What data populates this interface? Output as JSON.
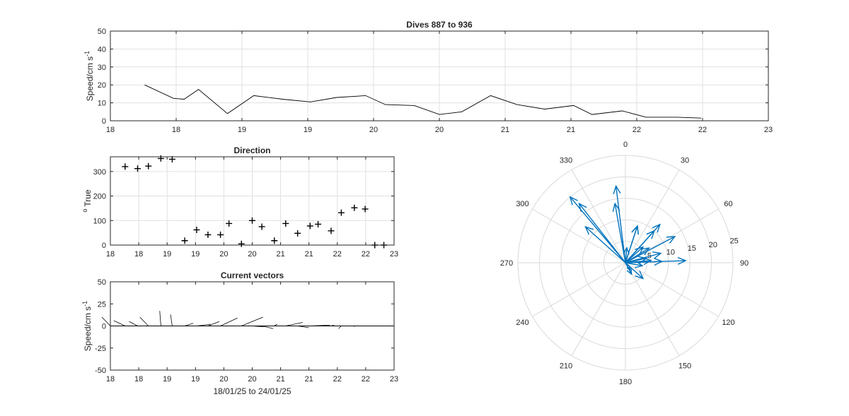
{
  "colors": {
    "axis": "#262626",
    "grid": "#e0e0e0",
    "trace": "#000000",
    "polar_grid": "#d9d9d9",
    "vector": "#0072bd"
  },
  "chart_data": [
    {
      "id": "speed",
      "type": "line",
      "title": "Dives 887 to 936",
      "xlabel": "",
      "ylabel": "Speed/cm s",
      "ylabel_sup": "-1",
      "xlim": [
        18.0,
        23.0
      ],
      "ylim": [
        0,
        50
      ],
      "xticks": [
        18.0,
        18.5,
        19.0,
        19.5,
        20.0,
        20.5,
        21.0,
        21.5,
        22.0,
        22.5,
        23.0
      ],
      "xtick_labels": [
        "18",
        "18",
        "19",
        "19",
        "20",
        "20",
        "21",
        "21",
        "22",
        "22",
        "23"
      ],
      "yticks": [
        0,
        10,
        20,
        30,
        40,
        50
      ],
      "ytick_labels": [
        "0",
        "10",
        "20",
        "30",
        "40",
        "50"
      ],
      "grid": true,
      "series": [
        {
          "x": [
            18.26,
            18.48,
            18.56,
            18.67,
            18.89,
            19.09,
            19.31,
            19.52,
            19.72,
            19.94,
            20.09,
            20.31,
            20.5,
            20.67,
            20.89,
            21.09,
            21.3,
            21.52,
            21.66,
            21.89,
            22.07,
            22.3,
            22.49
          ],
          "y": [
            20,
            12.5,
            12,
            17.5,
            4,
            14,
            12,
            10.5,
            13,
            14,
            9,
            8.5,
            3.5,
            5,
            14,
            9,
            6.5,
            8.5,
            3.5,
            5.5,
            2,
            2,
            1.5
          ]
        }
      ]
    },
    {
      "id": "direction",
      "type": "scatter",
      "title": "Direction",
      "xlabel": "",
      "ylabel": "True",
      "ylabel_pre": "o",
      "xlim": [
        18.0,
        23.0
      ],
      "ylim": [
        0,
        360
      ],
      "xticks": [
        18.0,
        18.5,
        19.0,
        19.5,
        20.0,
        20.5,
        21.0,
        21.5,
        22.0,
        22.5,
        23.0
      ],
      "xtick_labels": [
        "18",
        "18",
        "19",
        "19",
        "20",
        "20",
        "21",
        "21",
        "22",
        "22",
        "23"
      ],
      "yticks": [
        0,
        100,
        200,
        300
      ],
      "ytick_labels": [
        "0",
        "100",
        "200",
        "300"
      ],
      "grid": true,
      "marker": "+",
      "series": [
        {
          "x": [
            18.26,
            18.48,
            18.67,
            18.89,
            19.09,
            19.31,
            19.52,
            19.72,
            19.94,
            20.09,
            20.31,
            20.5,
            20.67,
            20.89,
            21.09,
            21.3,
            21.52,
            21.66,
            21.89,
            22.07,
            22.3,
            22.49,
            22.66,
            22.82
          ],
          "y": [
            320,
            312,
            322,
            353,
            350,
            18,
            62,
            42,
            42,
            88,
            5,
            100,
            75,
            18,
            88,
            48,
            78,
            85,
            58,
            132,
            152,
            147,
            0,
            0
          ]
        }
      ]
    },
    {
      "id": "vectors",
      "type": "line",
      "title": "Current vectors",
      "xlabel": "18/01/25 to 24/01/25",
      "ylabel": "Speed/cm s",
      "ylabel_sup": "-1",
      "xlim": [
        18.0,
        23.0
      ],
      "ylim": [
        -50,
        50
      ],
      "xticks": [
        18.0,
        18.5,
        19.0,
        19.5,
        20.0,
        20.5,
        21.0,
        21.5,
        22.0,
        22.5,
        23.0
      ],
      "xtick_labels": [
        "18",
        "18",
        "19",
        "19",
        "20",
        "20",
        "21",
        "21",
        "22",
        "22",
        "23"
      ],
      "yticks": [
        -50,
        -25,
        0,
        25,
        50
      ],
      "ytick_labels": [
        "-50",
        "-25",
        "0",
        "25",
        "50"
      ],
      "grid": false,
      "baseline": 0,
      "series": [
        {
          "x": [
            18.0,
            18.26,
            18.48,
            18.67,
            18.89,
            19.09,
            19.31,
            19.52,
            19.72,
            19.94,
            20.09,
            20.31,
            20.5,
            20.67,
            20.89,
            21.09,
            21.3,
            21.52,
            21.66,
            21.89,
            22.07,
            22.3
          ],
          "u": [
            -0.15,
            -0.2,
            -0.15,
            -0.15,
            -0.02,
            -0.03,
            0.15,
            0.25,
            0.2,
            0.3,
            0.05,
            0.38,
            0.2,
            0.2,
            0.05,
            0.3,
            0.2,
            0.35,
            0.08,
            0.05,
            -0.05,
            0.0
          ],
          "v": [
            10,
            6,
            5,
            10,
            17,
            13,
            3,
            2,
            5,
            9,
            0,
            10,
            -1,
            -3,
            2,
            4,
            -2,
            1,
            0,
            1,
            -3,
            -1
          ]
        }
      ]
    },
    {
      "id": "polar",
      "type": "line",
      "title": "",
      "angle_ticks": [
        0,
        30,
        60,
        90,
        120,
        150,
        180,
        210,
        240,
        270,
        300,
        330
      ],
      "angle_tick_labels": [
        "0",
        "30",
        "60",
        "90",
        "120",
        "150",
        "180",
        "210",
        "240",
        "270",
        "300",
        "330"
      ],
      "radial_ticks": [
        5,
        10,
        15,
        20,
        25
      ],
      "radial_tick_labels": [
        "5",
        "10",
        "15",
        "20",
        "25"
      ],
      "rlim": [
        0,
        25
      ],
      "grid": true,
      "series": [
        {
          "direction_deg": [
            320,
            312,
            322,
            353,
            350,
            18,
            62,
            42,
            42,
            88,
            100,
            75,
            18,
            88,
            48,
            78,
            85,
            58,
            132,
            152,
            147,
            5
          ],
          "speed": [
            20,
            12.5,
            17.5,
            18,
            14,
            9,
            13,
            10,
            12,
            14,
            4,
            8.5,
            9,
            8.5,
            5.5,
            5,
            6,
            6.5,
            5.5,
            3,
            2,
            3.5
          ]
        }
      ]
    }
  ]
}
